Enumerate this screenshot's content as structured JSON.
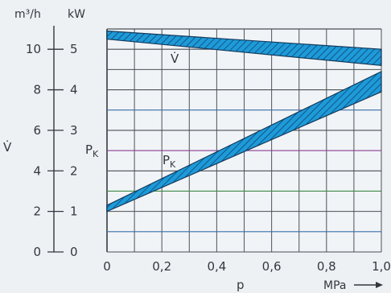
{
  "chart_data": {
    "type": "area",
    "y_left_unit": "m³/h",
    "y_right_unit": "kW",
    "y_left_label": "V̇",
    "y_right_label": "P",
    "y_right_label_sub": "K",
    "x_label": "p",
    "x_unit": "MPa",
    "x_ticks": [
      "0",
      "0,2",
      "0,4",
      "0,6",
      "0,8",
      "1,0"
    ],
    "y_left_ticks": [
      "0",
      "2",
      "4",
      "6",
      "8",
      "10"
    ],
    "y_right_ticks": [
      "0",
      "1",
      "2",
      "3",
      "4",
      "5"
    ],
    "xlim": [
      0,
      1.0
    ],
    "ylim_left": [
      0,
      11
    ],
    "ylim_right": [
      0,
      5.5
    ],
    "grid": true,
    "series": [
      {
        "name": "V̇",
        "axis": "left",
        "x": [
          0,
          1.0
        ],
        "upper": [
          10.9,
          10.0
        ],
        "lower": [
          10.5,
          9.2
        ],
        "color": "#1e9ad8"
      },
      {
        "name": "P",
        "name_sub": "K",
        "axis": "right",
        "x": [
          0,
          1.0
        ],
        "upper": [
          1.15,
          4.45
        ],
        "lower": [
          1.0,
          3.95
        ],
        "color": "#1e9ad8"
      }
    ]
  }
}
